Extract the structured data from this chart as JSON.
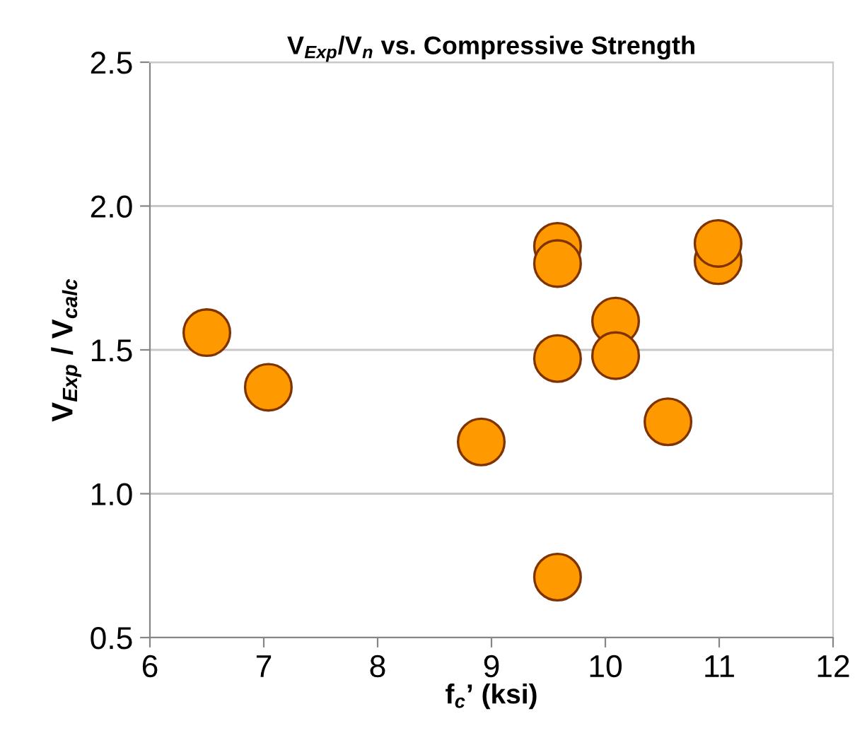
{
  "chart_data": {
    "type": "scatter",
    "title": "V$_{Exp}$/V$_{n}$ vs. Compressive Strength",
    "xlabel": "f$_{c}$’ (ksi)",
    "ylabel": "V$_{Exp}$ / V$_{calc}$",
    "x": [
      6.5,
      7.04,
      8.91,
      9.58,
      9.58,
      9.58,
      9.58,
      10.09,
      10.09,
      10.55,
      10.99,
      10.99
    ],
    "values": [
      1.56,
      1.37,
      1.18,
      1.86,
      1.8,
      1.47,
      0.71,
      1.6,
      1.48,
      1.25,
      1.81,
      1.87
    ],
    "color": "#ff9900",
    "marker": "circle",
    "xlim": [
      6,
      12
    ],
    "xticks": [
      6,
      7,
      8,
      9,
      10,
      11,
      12
    ],
    "ylim": [
      0.5,
      2.5
    ],
    "yticks": [
      {
        "value": 0.5,
        "label": "0.5"
      },
      {
        "value": 1.0,
        "label": "1.0"
      },
      {
        "value": 1.5,
        "label": "1.5"
      },
      {
        "value": 2.0,
        "label": "2.0"
      },
      {
        "value": 2.5,
        "label": "2.5"
      }
    ],
    "grid": "y",
    "legend": false
  }
}
